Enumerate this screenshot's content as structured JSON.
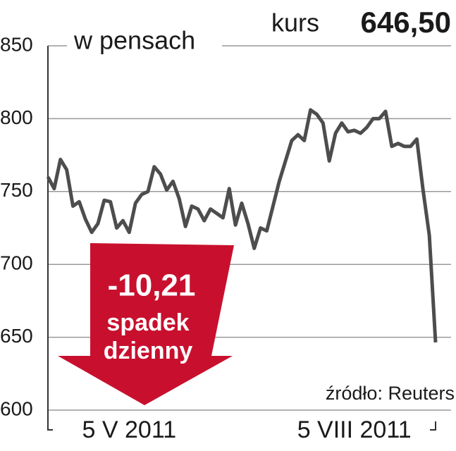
{
  "chart_data": {
    "type": "line",
    "unit_label": "w pensach",
    "price_label": "kurs",
    "price": "646,50",
    "annotation": {
      "change": "-10,21",
      "text": [
        "spadek",
        "dzienny"
      ]
    },
    "source": "źródło: Reuters",
    "categories": [
      null,
      null,
      null,
      null,
      null,
      null,
      null,
      null,
      null,
      null,
      null,
      null,
      null,
      "5 V 2011",
      null,
      null,
      null,
      null,
      null,
      null,
      null,
      null,
      null,
      null,
      null,
      null,
      null,
      null,
      null,
      null,
      null,
      null,
      null,
      null,
      null,
      null,
      null,
      null,
      null,
      null,
      null,
      null,
      null,
      null,
      null,
      null,
      null,
      null,
      null,
      "5 VIII 2011",
      null,
      null,
      null,
      null,
      null,
      null,
      null,
      null,
      null,
      null,
      null,
      null,
      null
    ],
    "series": [
      {
        "name": null,
        "color": "#4d4d4d",
        "values": [
          760,
          752,
          772,
          765,
          740,
          743,
          731,
          722,
          728,
          744,
          743,
          725,
          730,
          722,
          742,
          748,
          750,
          767,
          762,
          751,
          757,
          745,
          726,
          740,
          738,
          730,
          738,
          735,
          732,
          752,
          727,
          742,
          728,
          711,
          725,
          723,
          740,
          757,
          771,
          785,
          789,
          785,
          806,
          803,
          797,
          771,
          790,
          797,
          791,
          792,
          790,
          794,
          800,
          800,
          805,
          781,
          783,
          781,
          781,
          786,
          751,
          720,
          646.5
        ]
      }
    ],
    "ylim": [
      600,
      850
    ],
    "yticks": [
      600,
      650,
      700,
      750,
      800,
      850
    ],
    "grid": true,
    "arrow_color": "#c8102e"
  }
}
